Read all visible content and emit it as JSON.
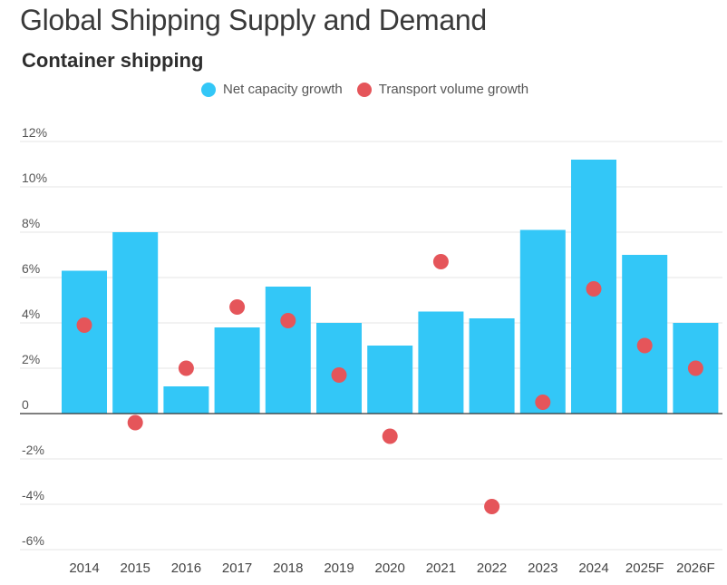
{
  "colors": {
    "bar": "#33c7f7",
    "dot": "#e5555a",
    "grid": "#e6e6e6",
    "axis": "#333333"
  },
  "chart_data": {
    "type": "bar",
    "title": "Global Shipping Supply and Demand",
    "subtitle": "Container shipping",
    "xlabel": "",
    "ylabel": "",
    "categories": [
      "2014",
      "2015",
      "2016",
      "2017",
      "2018",
      "2019",
      "2020",
      "2021",
      "2022",
      "2023",
      "2024",
      "2025F",
      "2026F"
    ],
    "series": [
      {
        "name": "Net capacity growth",
        "mark": "bar",
        "color": "#33c7f7",
        "values": [
          6.3,
          8.0,
          1.2,
          3.8,
          5.6,
          4.0,
          3.0,
          4.5,
          4.2,
          8.1,
          11.2,
          7.0,
          4.0
        ]
      },
      {
        "name": "Transport volume growth",
        "mark": "dot",
        "color": "#e5555a",
        "values": [
          3.9,
          -0.4,
          2.0,
          4.7,
          4.1,
          1.7,
          -1.0,
          6.7,
          -4.1,
          0.5,
          5.5,
          3.0,
          2.0
        ]
      }
    ],
    "ylim": [
      -6,
      12
    ],
    "yticks": [
      12,
      10,
      8,
      6,
      4,
      2,
      0,
      -2,
      -4,
      -6
    ],
    "ytick_labels": [
      "12%",
      "10%",
      "8%",
      "6%",
      "4%",
      "2%",
      "0",
      "-2%",
      "-4%",
      "-6%"
    ],
    "grid": true,
    "legend": "top-center",
    "units": "%"
  }
}
